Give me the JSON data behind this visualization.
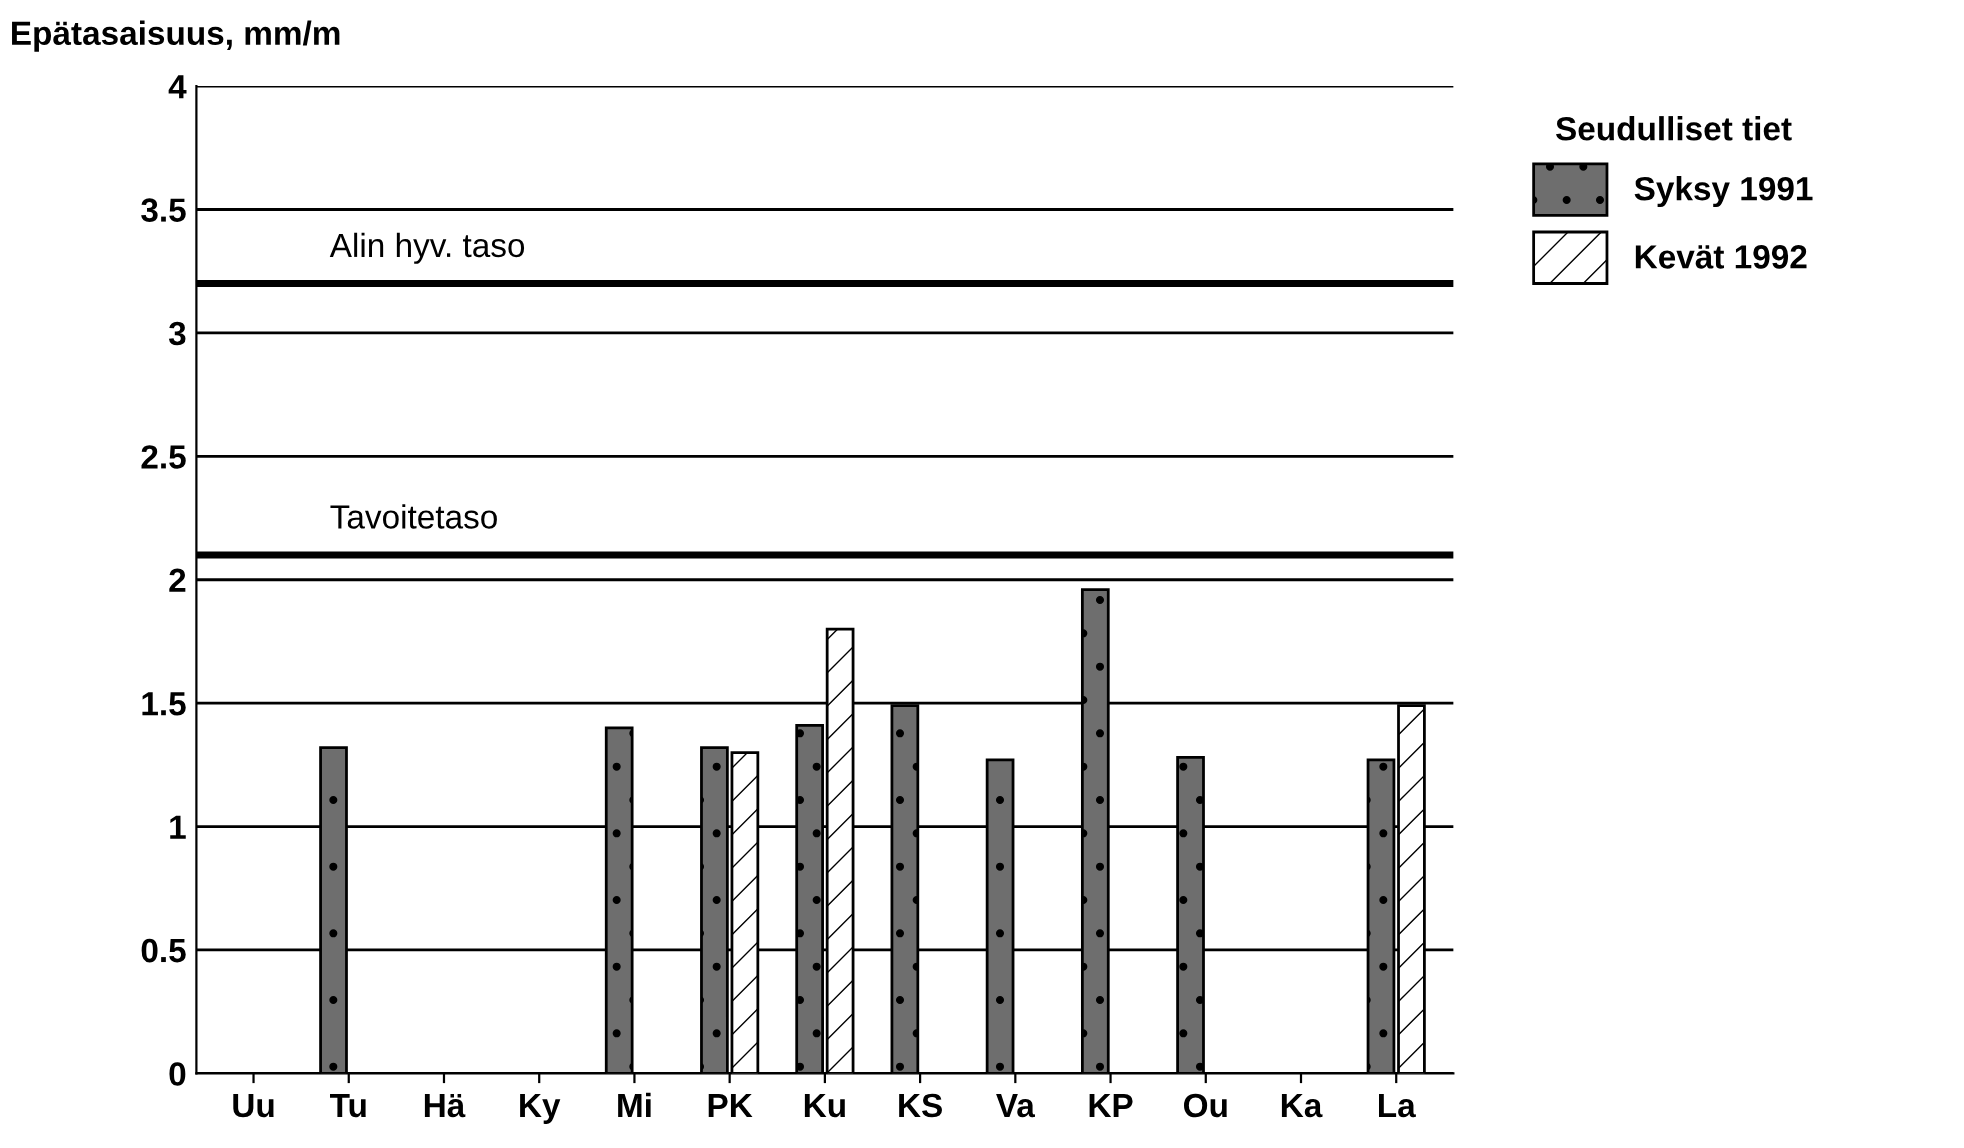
{
  "chart_data": {
    "type": "bar",
    "ylabel": "Epätasaisuus, mm/m",
    "legend_title": "Seudulliset tiet",
    "categories": [
      "Uu",
      "Tu",
      "Hä",
      "Ky",
      "Mi",
      "PK",
      "Ku",
      "KS",
      "Va",
      "KP",
      "Ou",
      "Ka",
      "La"
    ],
    "series": [
      {
        "name": "Syksy 1991",
        "color": "#6e6e6e",
        "values": [
          null,
          1.32,
          null,
          null,
          1.4,
          1.32,
          1.41,
          1.49,
          1.27,
          1.96,
          1.28,
          null,
          1.27
        ]
      },
      {
        "name": "Kevät 1992",
        "color": "#ffffff",
        "values": [
          null,
          null,
          null,
          null,
          null,
          1.3,
          1.8,
          null,
          null,
          null,
          null,
          null,
          1.49
        ]
      }
    ],
    "ylim": [
      0,
      4
    ],
    "yticks": [
      0,
      0.5,
      1,
      1.5,
      2,
      2.5,
      3,
      3.5,
      4
    ],
    "grid": "y",
    "legend": "right",
    "ref_lines": [
      {
        "axis": "y",
        "value": 3.2,
        "label": "Alin hyv. taso"
      },
      {
        "axis": "y",
        "value": 2.1,
        "label": "Tavoitetaso"
      }
    ]
  }
}
